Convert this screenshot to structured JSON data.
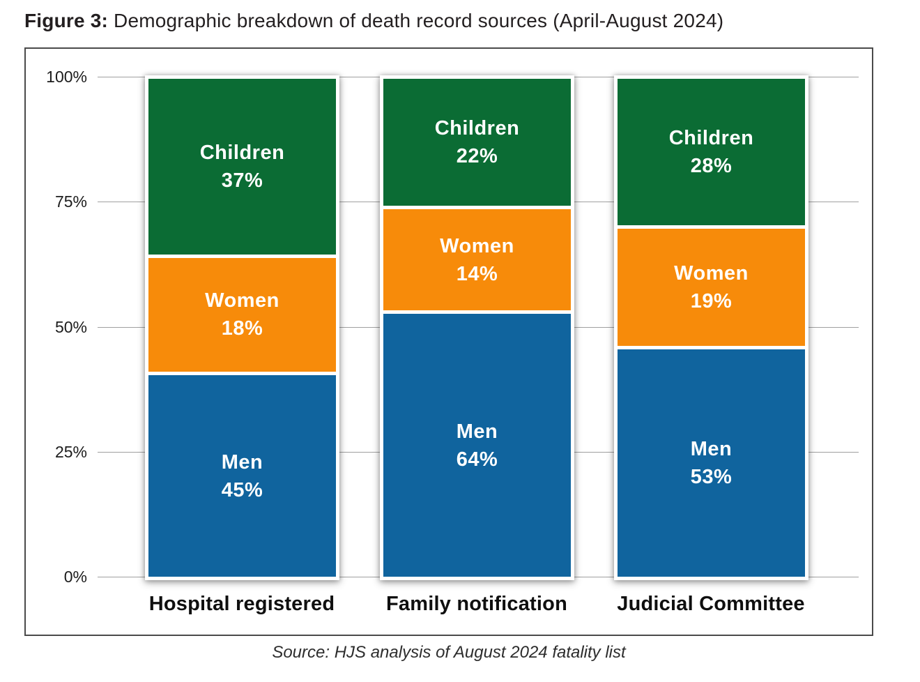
{
  "title": {
    "prefix": "Figure 3:",
    "text": " Demographic breakdown of death record sources (April-August 2024)"
  },
  "chart_data": {
    "type": "bar",
    "stacked": true,
    "unit": "%",
    "title": "Figure 3: Demographic breakdown of death record sources (April-August 2024)",
    "categories": [
      "Hospital registered",
      "Family notification",
      "Judicial Committee"
    ],
    "series_order_bottom_to_top": [
      "Men",
      "Women",
      "Children"
    ],
    "colors": {
      "Men": "#10649e",
      "Women": "#f78b0a",
      "Children": "#0b6c34"
    },
    "ylim": [
      0,
      100
    ],
    "y_ticks": [
      {
        "value": 0,
        "label": "0%"
      },
      {
        "value": 25,
        "label": "25%"
      },
      {
        "value": 50,
        "label": "50%"
      },
      {
        "value": 75,
        "label": "75%"
      },
      {
        "value": 100,
        "label": "100%"
      }
    ],
    "grid": true,
    "legend": "none (labels inside segments)",
    "bars": [
      {
        "category": "Hospital registered",
        "segments": [
          {
            "group": "Men",
            "value": 45,
            "value_label": "45%"
          },
          {
            "group": "Women",
            "value": 18,
            "value_label": "18%"
          },
          {
            "group": "Children",
            "value": 37,
            "value_label": "37%"
          }
        ]
      },
      {
        "category": "Family notification",
        "segments": [
          {
            "group": "Men",
            "value": 64,
            "value_label": "64%"
          },
          {
            "group": "Women",
            "value": 14,
            "value_label": "14%"
          },
          {
            "group": "Children",
            "value": 22,
            "value_label": "22%"
          }
        ]
      },
      {
        "category": "Judicial Committee",
        "segments": [
          {
            "group": "Men",
            "value": 53,
            "value_label": "53%"
          },
          {
            "group": "Women",
            "value": 19,
            "value_label": "19%"
          },
          {
            "group": "Children",
            "value": 28,
            "value_label": "28%"
          }
        ]
      }
    ],
    "source_note": "Source: HJS analysis of August 2024 fatality list"
  }
}
